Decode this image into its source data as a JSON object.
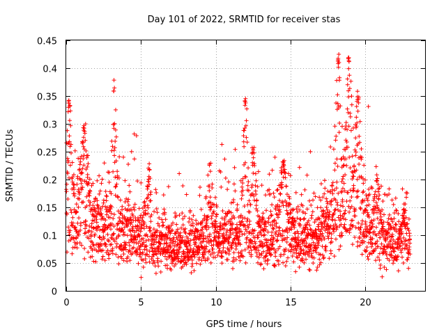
{
  "chart_data": {
    "type": "scatter",
    "title": "Day 101 of 2022, SRMTID for receiver stas",
    "xlabel": "GPS time / hours",
    "ylabel": "SRMTID / TECUs",
    "xlim": [
      0,
      24
    ],
    "ylim": [
      0,
      0.45
    ],
    "x_ticks": [
      0,
      5,
      10,
      15,
      20
    ],
    "x_tick_labels": [
      "0",
      "5",
      "10",
      "15",
      "20"
    ],
    "y_ticks": [
      0,
      0.05,
      0.1,
      0.15,
      0.2,
      0.25,
      0.3,
      0.35,
      0.4,
      0.45
    ],
    "y_tick_labels": [
      "0",
      "0.05",
      "0.1",
      "0.15",
      "0.2",
      "0.25",
      "0.3",
      "0.35",
      "0.4",
      "0.45"
    ],
    "grid": true,
    "marker": "plus",
    "color": "#ff0000",
    "series": [
      {
        "name": "stas",
        "x_range": [
          0,
          23
        ],
        "baseline_profile": [
          [
            0,
            0.12
          ],
          [
            1,
            0.13
          ],
          [
            2,
            0.12
          ],
          [
            3,
            0.11
          ],
          [
            4,
            0.11
          ],
          [
            5,
            0.1
          ],
          [
            6,
            0.08
          ],
          [
            7,
            0.08
          ],
          [
            8,
            0.08
          ],
          [
            9,
            0.09
          ],
          [
            10,
            0.1
          ],
          [
            11,
            0.1
          ],
          [
            12,
            0.11
          ],
          [
            13,
            0.1
          ],
          [
            14,
            0.1
          ],
          [
            15,
            0.1
          ],
          [
            16,
            0.09
          ],
          [
            17,
            0.1
          ],
          [
            18,
            0.13
          ],
          [
            19,
            0.15
          ],
          [
            20,
            0.12
          ],
          [
            21,
            0.09
          ],
          [
            22,
            0.09
          ],
          [
            23,
            0.09
          ]
        ],
        "enhancements": [
          {
            "center": 0.2,
            "width": 0.3,
            "peak": 0.35
          },
          {
            "center": 1.2,
            "width": 0.4,
            "peak": 0.3
          },
          {
            "center": 3.2,
            "width": 0.25,
            "peak": 0.38
          },
          {
            "center": 5.5,
            "width": 0.3,
            "peak": 0.23
          },
          {
            "center": 9.6,
            "width": 0.3,
            "peak": 0.23
          },
          {
            "center": 12.0,
            "width": 0.25,
            "peak": 0.35
          },
          {
            "center": 12.5,
            "width": 0.3,
            "peak": 0.26
          },
          {
            "center": 14.5,
            "width": 0.4,
            "peak": 0.24
          },
          {
            "center": 18.2,
            "width": 0.35,
            "peak": 0.43
          },
          {
            "center": 18.9,
            "width": 0.35,
            "peak": 0.42
          },
          {
            "center": 19.5,
            "width": 0.3,
            "peak": 0.36
          },
          {
            "center": 20.8,
            "width": 0.3,
            "peak": 0.21
          },
          {
            "center": 22.6,
            "width": 0.3,
            "peak": 0.15
          }
        ],
        "y_min_observed": 0.022,
        "y_max_observed": 0.433
      }
    ]
  }
}
